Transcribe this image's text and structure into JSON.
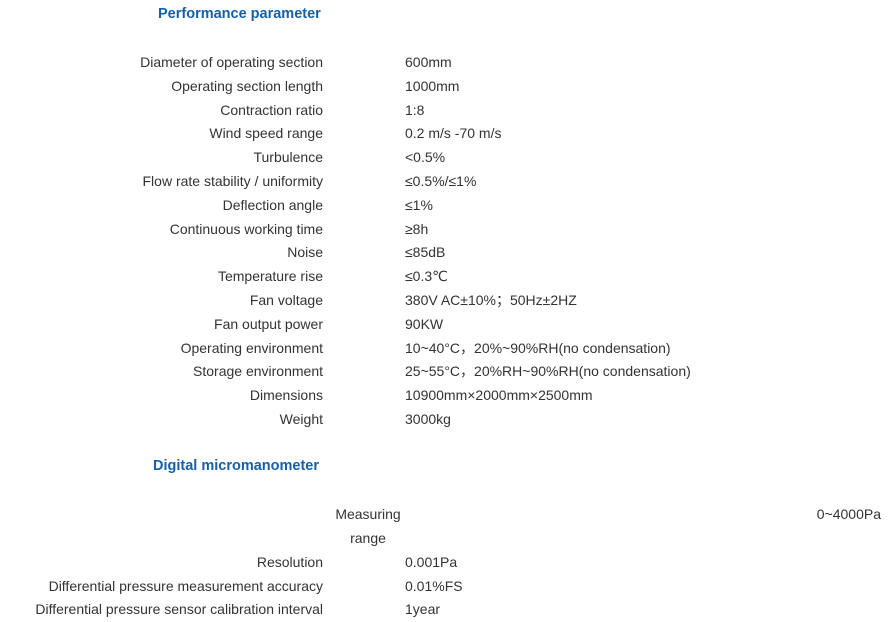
{
  "performance": {
    "title": "Performance parameter",
    "rows": [
      {
        "label": "Diameter of operating section",
        "value": "600mm"
      },
      {
        "label": "Operating section length",
        "value": "1000mm"
      },
      {
        "label": "Contraction ratio",
        "value": "1:8"
      },
      {
        "label": "Wind speed range",
        "value": "0.2 m/s -70 m/s"
      },
      {
        "label": "Turbulence",
        "value": "<0.5%"
      },
      {
        "label": "Flow rate stability / uniformity",
        "value": "≤0.5%/≤1%"
      },
      {
        "label": "Deflection angle",
        "value": "≤1%"
      },
      {
        "label": "Continuous working time",
        "value": "≥8h"
      },
      {
        "label": "Noise",
        "value": "≤85dB"
      },
      {
        "label": "Temperature rise",
        "value": "≤0.3℃"
      },
      {
        "label": "Fan voltage",
        "value": "380V AC±10%；50Hz±2HZ"
      },
      {
        "label": "Fan output power",
        "value": "90KW"
      },
      {
        "label": "Operating environment",
        "value": "10~40°C，20%~90%RH(no condensation)"
      },
      {
        "label": "Storage environment",
        "value": "25~55°C，20%RH~90%RH(no condensation)"
      },
      {
        "label": "Dimensions",
        "value": "10900mm×2000mm×2500mm"
      },
      {
        "label": "Weight",
        "value": "3000kg"
      }
    ]
  },
  "micromanometer": {
    "title": "Digital micromanometer",
    "measuring_range": {
      "label_line1": "Measuring",
      "label_line2": "range",
      "value": "0~4000Pa"
    },
    "rows": [
      {
        "label": "Resolution",
        "value": "0.001Pa"
      },
      {
        "label": "Differential pressure measurement accuracy",
        "value": "0.01%FS"
      },
      {
        "label": "Differential pressure sensor calibration interval",
        "value": "1year"
      }
    ]
  }
}
